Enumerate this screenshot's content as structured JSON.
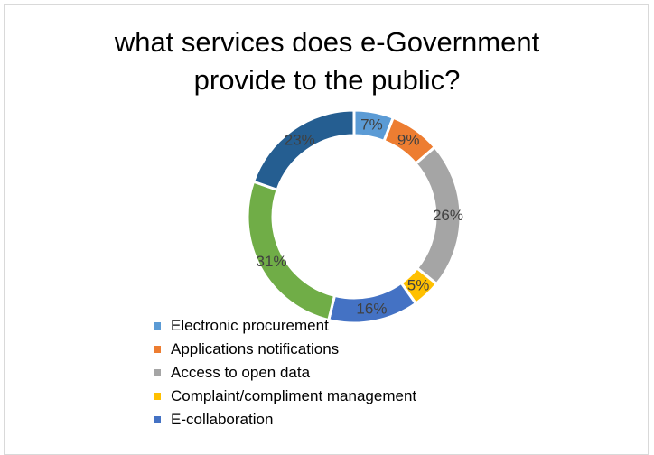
{
  "chart_data": {
    "type": "pie",
    "variant": "doughnut",
    "title_lines": [
      "what services does e-Government",
      "provide to the public?"
    ],
    "slices": [
      {
        "label": "Electronic procurement",
        "value": 7,
        "value_label": "7%",
        "color": "#5B9BD5"
      },
      {
        "label": "Applications notifications",
        "value": 9,
        "value_label": "9%",
        "color": "#ED7D31"
      },
      {
        "label": "Access to open data",
        "value": 26,
        "value_label": "26%",
        "color": "#A5A5A5"
      },
      {
        "label": "Complaint/compliment management",
        "value": 5,
        "value_label": "5%",
        "color": "#FFC000"
      },
      {
        "label": "E-collaboration",
        "value": 16,
        "value_label": "16%",
        "color": "#4472C4"
      },
      {
        "label": "",
        "value": 31,
        "value_label": "31%",
        "color": "#70AD47"
      },
      {
        "label": "",
        "value": 23,
        "value_label": "23%",
        "color": "#255E91"
      }
    ],
    "legend_position": "bottom"
  }
}
